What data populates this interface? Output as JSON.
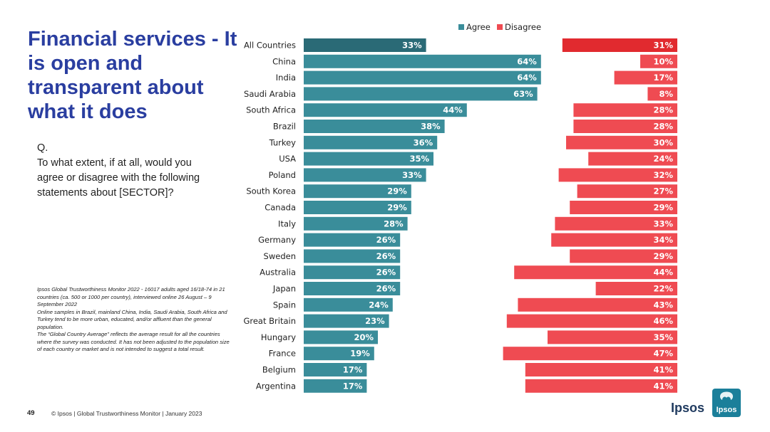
{
  "title": "Financial services - It is open and transparent about what it does",
  "question": {
    "prefix": "Q.",
    "text": "To what extent, if at all, would you agree or disagree with the following statements about [SECTOR]?"
  },
  "notes": [
    "Ipsos Global Trustworthiness Monitor 2022 - 16017 adults aged 16/18-74 in 21 countries (ca. 500 or 1000 per country), interviewed online 26 August – 9 September 2022",
    "Online samples in Brazil, mainland China, India, Saudi Arabia, South Africa and Turkey tend to be more urban, educated, and/or affluent than the general population.",
    "The “Global Country Average” reflects the average result for all the countries where the survey was conducted. It has not been adjusted to the population size of each country or market and is not intended to suggest a total result."
  ],
  "footer": {
    "page_number": "49",
    "text": "© Ipsos | Global Trustworthiness Monitor | January 2023"
  },
  "brand": {
    "wordmark": "Ipsos",
    "logo_text": "Ipsos"
  },
  "colors": {
    "title": "#2a3ea0",
    "agree": "#3a8d9a",
    "agree_highlight": "#2a6a76",
    "disagree": "#ef4b52",
    "disagree_highlight": "#e12a2f",
    "logo": "#1b7f9a"
  },
  "chart_data": {
    "type": "bar",
    "orientation": "horizontal",
    "title": "",
    "categories": [
      "All Countries",
      "China",
      "India",
      "Saudi Arabia",
      "South Africa",
      "Brazil",
      "Turkey",
      "USA",
      "Poland",
      "South Korea",
      "Canada",
      "Italy",
      "Germany",
      "Sweden",
      "Australia",
      "Japan",
      "Spain",
      "Great Britain",
      "Hungary",
      "France",
      "Belgium",
      "Argentina"
    ],
    "series": [
      {
        "name": "Agree",
        "values": [
          33,
          64,
          64,
          63,
          44,
          38,
          36,
          35,
          33,
          29,
          29,
          28,
          26,
          26,
          26,
          26,
          24,
          23,
          20,
          19,
          17,
          17
        ]
      },
      {
        "name": "Disagree",
        "values": [
          31,
          10,
          17,
          8,
          28,
          28,
          30,
          24,
          32,
          27,
          29,
          33,
          34,
          29,
          44,
          22,
          43,
          46,
          35,
          47,
          41,
          41
        ]
      }
    ],
    "value_suffix": "%",
    "legend": {
      "position": "top",
      "items": [
        "Agree",
        "Disagree"
      ]
    },
    "highlight_category": "All Countries"
  }
}
